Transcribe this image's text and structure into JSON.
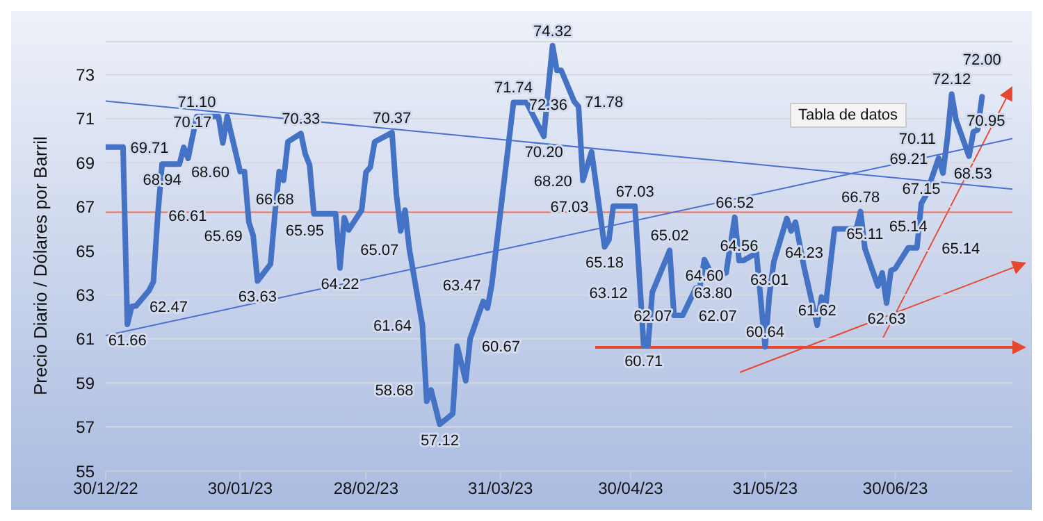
{
  "chart_data": {
    "type": "line",
    "ylabel": "Precio Diario / Dólares por Barril",
    "xlim": [
      "2022-12-30",
      "2023-07-27"
    ],
    "xticks": [
      {
        "value": "2022-12-30",
        "label": "30/12/22"
      },
      {
        "value": "2023-01-30",
        "label": "30/01/23"
      },
      {
        "value": "2023-02-28",
        "label": "28/02/23"
      },
      {
        "value": "2023-03-31",
        "label": "31/03/23"
      },
      {
        "value": "2023-04-30",
        "label": "30/04/23"
      },
      {
        "value": "2023-05-31",
        "label": "31/05/23"
      },
      {
        "value": "2023-06-30",
        "label": "30/06/23"
      }
    ],
    "ylim": [
      55,
      74.5
    ],
    "yticks": [
      55,
      57,
      59,
      61,
      63,
      65,
      67,
      69,
      71,
      73
    ],
    "grid": "y",
    "marker": "none",
    "annotations": [
      "Tabla de datos"
    ],
    "ref_lines": [
      {
        "axis": "y",
        "value": 66.75,
        "color": "#e8725c"
      }
    ],
    "series": [
      {
        "color": "#4472c4",
        "x": [
          "2022-12-30",
          "2023-01-03",
          "2023-01-04",
          "2023-01-05",
          "2023-01-06",
          "2023-01-09",
          "2023-01-10",
          "2023-01-11",
          "2023-01-12",
          "2023-01-13",
          "2023-01-16",
          "2023-01-17",
          "2023-01-18",
          "2023-01-19",
          "2023-01-20",
          "2023-01-23",
          "2023-01-24",
          "2023-01-25",
          "2023-01-26",
          "2023-01-27",
          "2023-01-30",
          "2023-01-31",
          "2023-02-01",
          "2023-02-02",
          "2023-02-03",
          "2023-02-06",
          "2023-02-07",
          "2023-02-08",
          "2023-02-09",
          "2023-02-10",
          "2023-02-13",
          "2023-02-14",
          "2023-02-15",
          "2023-02-16",
          "2023-02-17",
          "2023-02-20",
          "2023-02-21",
          "2023-02-22",
          "2023-02-23",
          "2023-02-24",
          "2023-02-27",
          "2023-02-28",
          "2023-03-01",
          "2023-03-02",
          "2023-03-06",
          "2023-03-07",
          "2023-03-08",
          "2023-03-09",
          "2023-03-10",
          "2023-03-13",
          "2023-03-14",
          "2023-03-15",
          "2023-03-17",
          "2023-03-20",
          "2023-03-21",
          "2023-03-23",
          "2023-03-24",
          "2023-03-27",
          "2023-03-28",
          "2023-03-29",
          "2023-04-03",
          "2023-04-04",
          "2023-04-06",
          "2023-04-10",
          "2023-04-11",
          "2023-04-12",
          "2023-04-13",
          "2023-04-14",
          "2023-04-17",
          "2023-04-18",
          "2023-04-19",
          "2023-04-21",
          "2023-04-24",
          "2023-04-25",
          "2023-04-26",
          "2023-04-28",
          "2023-05-01",
          "2023-05-03",
          "2023-05-04",
          "2023-05-05",
          "2023-05-09",
          "2023-05-10",
          "2023-05-12",
          "2023-05-15",
          "2023-05-16",
          "2023-05-17",
          "2023-05-19",
          "2023-05-22",
          "2023-05-24",
          "2023-05-25",
          "2023-05-26",
          "2023-05-29",
          "2023-05-31",
          "2023-06-01",
          "2023-06-02",
          "2023-06-05",
          "2023-06-06",
          "2023-06-07",
          "2023-06-09",
          "2023-06-12",
          "2023-06-13",
          "2023-06-14",
          "2023-06-16",
          "2023-06-19",
          "2023-06-21",
          "2023-06-22",
          "2023-06-23",
          "2023-06-26",
          "2023-06-27",
          "2023-06-28",
          "2023-06-29",
          "2023-06-30",
          "2023-07-03",
          "2023-07-05",
          "2023-07-06",
          "2023-07-07",
          "2023-07-10",
          "2023-07-11",
          "2023-07-12",
          "2023-07-13",
          "2023-07-14",
          "2023-07-17",
          "2023-07-18",
          "2023-07-19",
          "2023-07-20"
        ],
        "values": [
          69.71,
          69.71,
          61.66,
          62.47,
          62.5,
          63.2,
          63.6,
          66.61,
          68.94,
          68.94,
          68.94,
          69.7,
          69.2,
          70.17,
          71.1,
          71.1,
          71.1,
          71.1,
          69.9,
          71.1,
          68.6,
          68.6,
          66.3,
          65.69,
          63.63,
          64.4,
          66.68,
          68.6,
          68.2,
          69.95,
          70.33,
          69.4,
          68.9,
          66.68,
          66.68,
          66.68,
          66.68,
          64.22,
          66.5,
          65.95,
          66.85,
          68.57,
          68.8,
          69.95,
          70.37,
          67.57,
          65.9,
          66.85,
          65.07,
          61.64,
          58.16,
          58.68,
          57.12,
          57.6,
          60.67,
          59.1,
          61,
          62.7,
          62.4,
          63.47,
          71.74,
          71.74,
          71.74,
          70.2,
          72.36,
          74.32,
          73.2,
          73.2,
          71.78,
          71.55,
          68.2,
          69.5,
          65.18,
          65.5,
          67.03,
          67.03,
          67.03,
          60.71,
          60.71,
          63.12,
          65.02,
          62.07,
          62.07,
          63.3,
          63.4,
          64.6,
          63.8,
          64.0,
          66.52,
          64.56,
          64.56,
          64.9,
          60.64,
          63.01,
          64.5,
          66.47,
          65.9,
          66.3,
          64.23,
          61.62,
          62.9,
          62.6,
          66.0,
          66.0,
          66.0,
          66.78,
          65.11,
          63.4,
          64.0,
          62.63,
          64.1,
          64.2,
          65.14,
          65.14,
          67.15,
          67.5,
          69.21,
          68.53,
          70.11,
          72.12,
          70.95,
          69.3,
          70.4,
          70.5,
          72.0
        ],
        "value_labels": [
          "69.71",
          null,
          "61.66",
          "62.47",
          null,
          null,
          null,
          "66.61",
          "68.94",
          null,
          null,
          null,
          null,
          "70.17",
          "71.10",
          null,
          null,
          null,
          null,
          null,
          "68.60",
          null,
          null,
          "65.69",
          "63.63",
          null,
          "66.68",
          null,
          null,
          null,
          "70.33",
          null,
          null,
          null,
          null,
          null,
          null,
          "64.22",
          null,
          "65.95",
          null,
          null,
          null,
          null,
          "70.37",
          null,
          null,
          null,
          "65.07",
          "61.64",
          null,
          "58.68",
          "57.12",
          null,
          "60.67",
          null,
          null,
          null,
          null,
          "63.47",
          "71.74",
          null,
          null,
          "70.20",
          "72.36",
          "74.32",
          null,
          null,
          "71.78",
          null,
          "68.20",
          null,
          "65.18",
          null,
          "67.03",
          null,
          "67.03",
          "60.71",
          null,
          "63.12",
          "65.02",
          "62.07",
          "62.07",
          null,
          null,
          "64.60",
          "63.80",
          null,
          "66.52",
          "64.56",
          null,
          null,
          "60.64",
          "63.01",
          null,
          null,
          null,
          null,
          "64.23",
          "61.62",
          null,
          null,
          null,
          null,
          null,
          "66.78",
          "65.11",
          null,
          null,
          "62.63",
          null,
          null,
          "65.14",
          "65.14",
          "67.15",
          null,
          "69.21",
          "68.53",
          "70.11",
          "72.12",
          "70.95",
          null,
          null,
          null,
          "72.00"
        ]
      },
      {
        "type": "line",
        "color": "#4a6fd0",
        "x": [
          "2022-12-30",
          "2023-07-27"
        ],
        "values": [
          71.8,
          67.8
        ]
      },
      {
        "type": "line",
        "color": "#4a6fd0",
        "x": [
          "2022-12-30",
          "2023-07-27"
        ],
        "values": [
          61.15,
          70.1
        ]
      }
    ]
  }
}
